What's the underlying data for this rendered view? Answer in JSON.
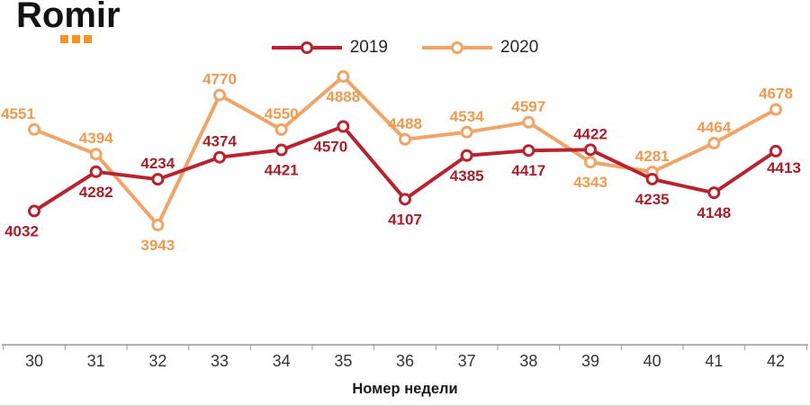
{
  "logo": {
    "text": "Romir"
  },
  "colors": {
    "logo_text": "#121212",
    "logo_dots": "#F7941E",
    "axis": "#999999",
    "tick_label": "#333333",
    "xlabel": "#1a1a1a",
    "legend_text": "#262626"
  },
  "chart_data": {
    "type": "line",
    "categories": [
      "30",
      "31",
      "32",
      "33",
      "34",
      "35",
      "36",
      "37",
      "38",
      "39",
      "40",
      "41",
      "42"
    ],
    "xlabel": "Номер недели",
    "ylabel": "",
    "ylim": [
      3181,
      5031
    ],
    "grid": false,
    "legend_position": "top-center",
    "marker": "open-circle",
    "series": [
      {
        "name": "2019",
        "color": "#B92330",
        "label_color": "#A8202A",
        "values": [
          4032,
          4282,
          4234,
          4374,
          4421,
          4570,
          4107,
          4385,
          4417,
          4422,
          4235,
          4148,
          4413
        ],
        "label_placement": [
          "below-left",
          "below",
          "above",
          "above",
          "below",
          "below-left",
          "below",
          "below",
          "below",
          "above",
          "below",
          "below",
          "below-right"
        ]
      },
      {
        "name": "2020",
        "color": "#F2A466",
        "label_color": "#F09A50",
        "values": [
          4551,
          4394,
          3943,
          4770,
          4550,
          4888,
          4488,
          4534,
          4597,
          4343,
          4281,
          4464,
          4678
        ],
        "label_placement": [
          "above-left",
          "above",
          "below",
          "above",
          "above",
          "below",
          "above",
          "above",
          "above",
          "below",
          "above",
          "above",
          "above"
        ]
      }
    ]
  }
}
